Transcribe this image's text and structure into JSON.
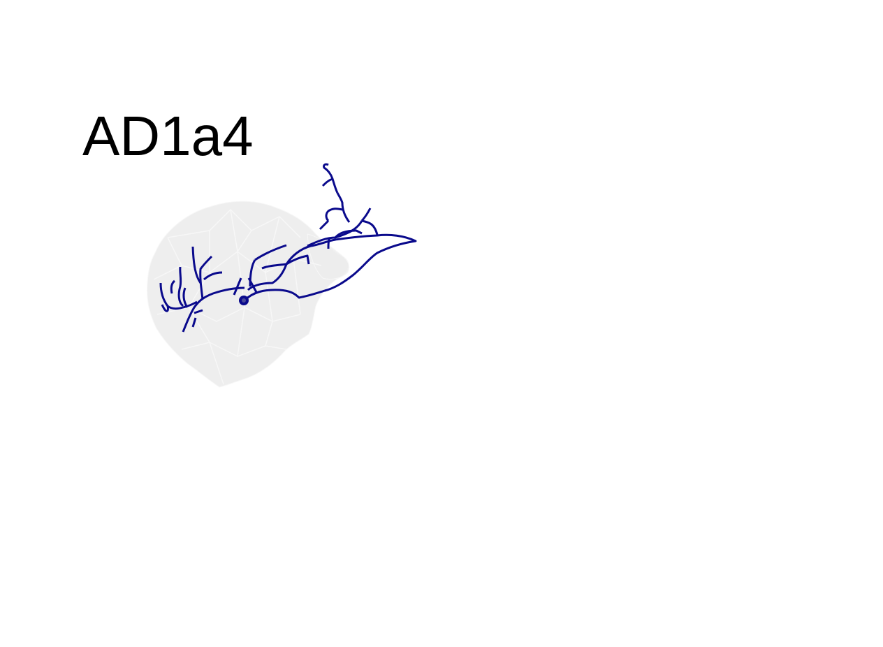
{
  "title": "AD1a4",
  "colors": {
    "neuron": "#0a0a8c",
    "mesh_fill": "#ececec",
    "mesh_edge": "#f7f7f7",
    "soma_inner": "#4a4a9a",
    "background": "#ffffff"
  }
}
